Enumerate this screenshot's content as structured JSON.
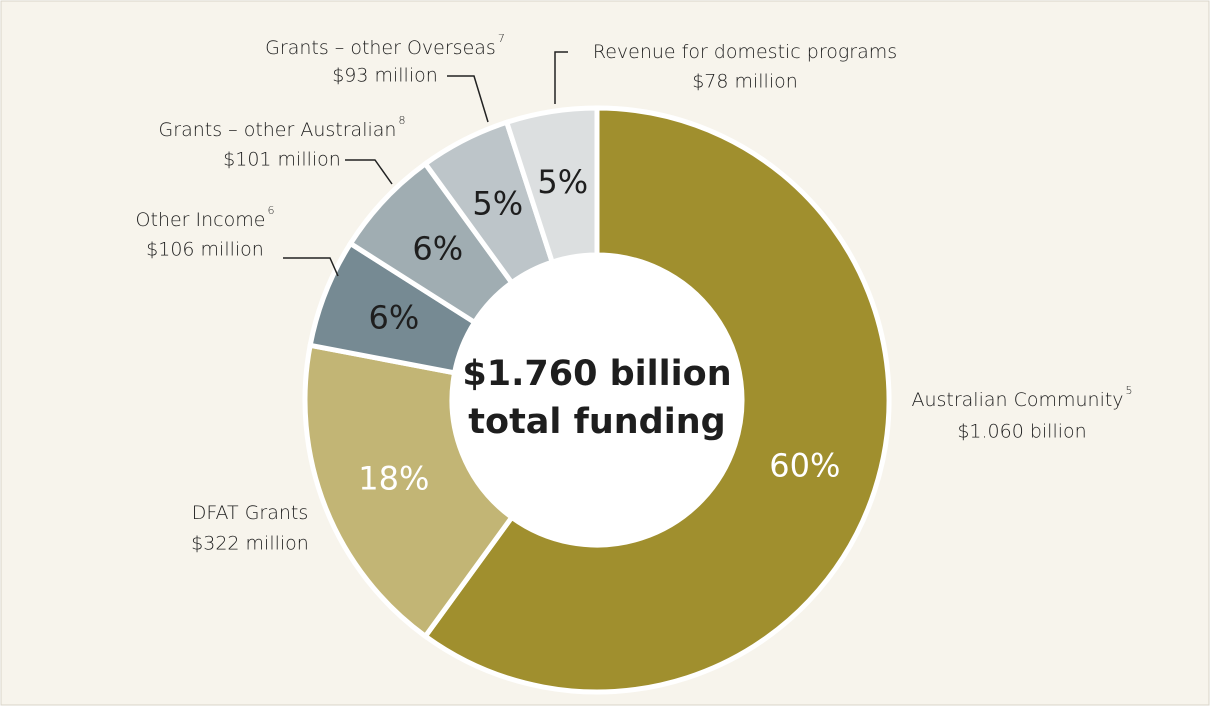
{
  "chart_data": {
    "type": "donut",
    "categories": [
      "Australian Community",
      "DFAT Grants",
      "Other Income",
      "Grants – other Australian",
      "Grants – other Overseas",
      "Revenue for domestic programs"
    ],
    "footnotes": [
      "5",
      null,
      "6",
      "8",
      "7",
      null
    ],
    "amounts": [
      "$1.060 billion",
      "$322 million",
      "$106 million",
      "$101 million",
      "$93 million",
      "$78 million"
    ],
    "values": [
      60,
      18,
      6,
      6,
      5,
      5
    ],
    "value_labels": [
      "60%",
      "18%",
      "6%",
      "6%",
      "5%",
      "5%"
    ],
    "colors": [
      "#a08f2e",
      "#c2b575",
      "#768a93",
      "#a0adb2",
      "#bdc5c9",
      "#dcdfe0"
    ],
    "center_label": [
      "$1.760 billion",
      "total funding"
    ]
  }
}
